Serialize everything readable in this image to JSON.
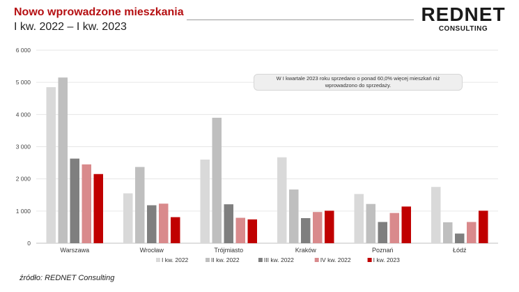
{
  "header": {
    "title": "Nowo wprowadzone mieszkania",
    "subtitle": "I kw. 2022 – I kw. 2023",
    "logo_main": "REDNET",
    "logo_sub": "CONSULTING"
  },
  "source": "źródło: REDNET Consulting",
  "annotation": "W I kwartale 2023 roku sprzedano o ponad 60,0% więcej mieszkań niż wprowadzono do sprzedaży.",
  "chart_data": {
    "type": "bar",
    "categories": [
      "Warszawa",
      "Wrocław",
      "Trójmiasto",
      "Kraków",
      "Poznań",
      "Łódź"
    ],
    "series": [
      {
        "name": "I kw. 2022",
        "color": "#d9d9d9",
        "values": [
          4850,
          1550,
          2600,
          2670,
          1530,
          1750
        ]
      },
      {
        "name": "II kw. 2022",
        "color": "#bfbfbf",
        "values": [
          5150,
          2370,
          3900,
          1670,
          1220,
          650
        ]
      },
      {
        "name": "III kw. 2022",
        "color": "#7f7f7f",
        "values": [
          2630,
          1180,
          1210,
          780,
          660,
          300
        ]
      },
      {
        "name": "IV kw. 2022",
        "color": "#d98a8c",
        "values": [
          2450,
          1230,
          790,
          970,
          940,
          660
        ]
      },
      {
        "name": "I kw. 2023",
        "color": "#c00000",
        "values": [
          2150,
          810,
          740,
          1010,
          1140,
          1010
        ]
      }
    ],
    "ylim": [
      0,
      6000
    ],
    "yticks": [
      0,
      1000,
      2000,
      3000,
      4000,
      5000,
      6000
    ],
    "ytick_labels": [
      "0",
      "1 000",
      "2 000",
      "3 000",
      "4 000",
      "5 000",
      "6 000"
    ],
    "grid": true,
    "legend_position": "bottom"
  }
}
